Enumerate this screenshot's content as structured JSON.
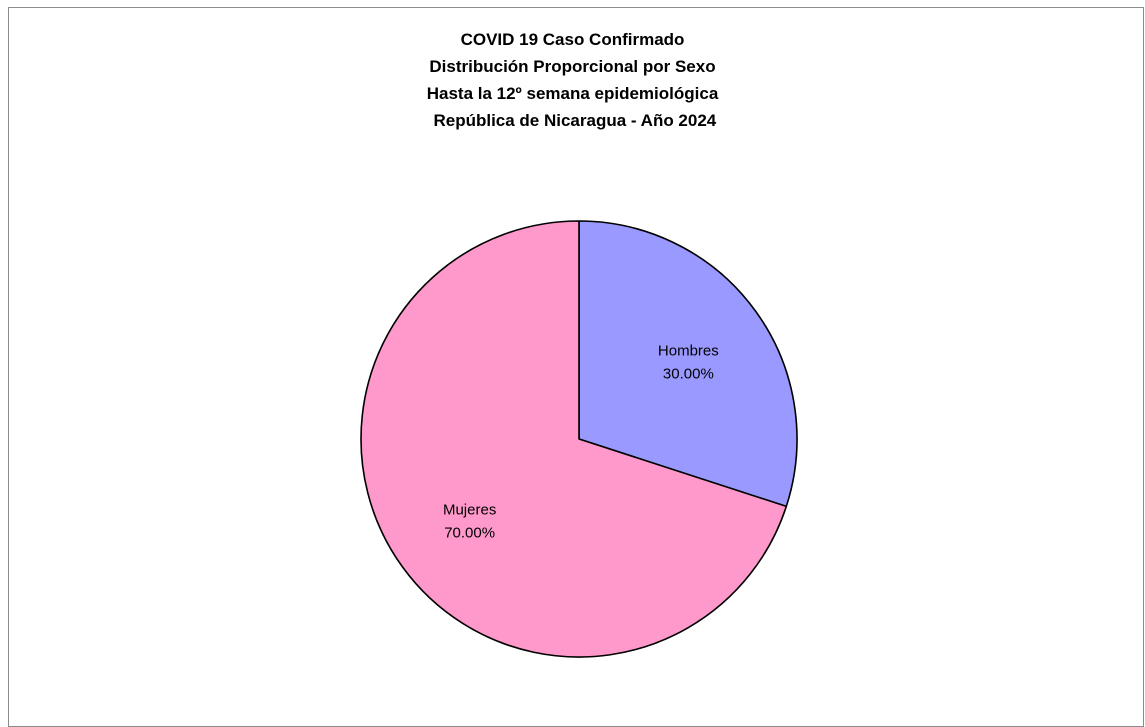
{
  "chart_data": {
    "type": "pie",
    "title_lines": [
      "COVID 19 Caso Confirmado",
      "Distribución Proporcional por Sexo",
      "Hasta la 12º semana epidemiológica",
      " República de Nicaragua - Año 2024"
    ],
    "slices": [
      {
        "name": "Hombres",
        "value": 30.0,
        "label": "30.00%",
        "color": "#9999ff"
      },
      {
        "name": "Mujeres",
        "value": 70.0,
        "label": "70.00%",
        "color": "#ff99cc"
      }
    ],
    "start_angle": "12 o'clock",
    "direction": "clockwise",
    "legend": "none"
  }
}
